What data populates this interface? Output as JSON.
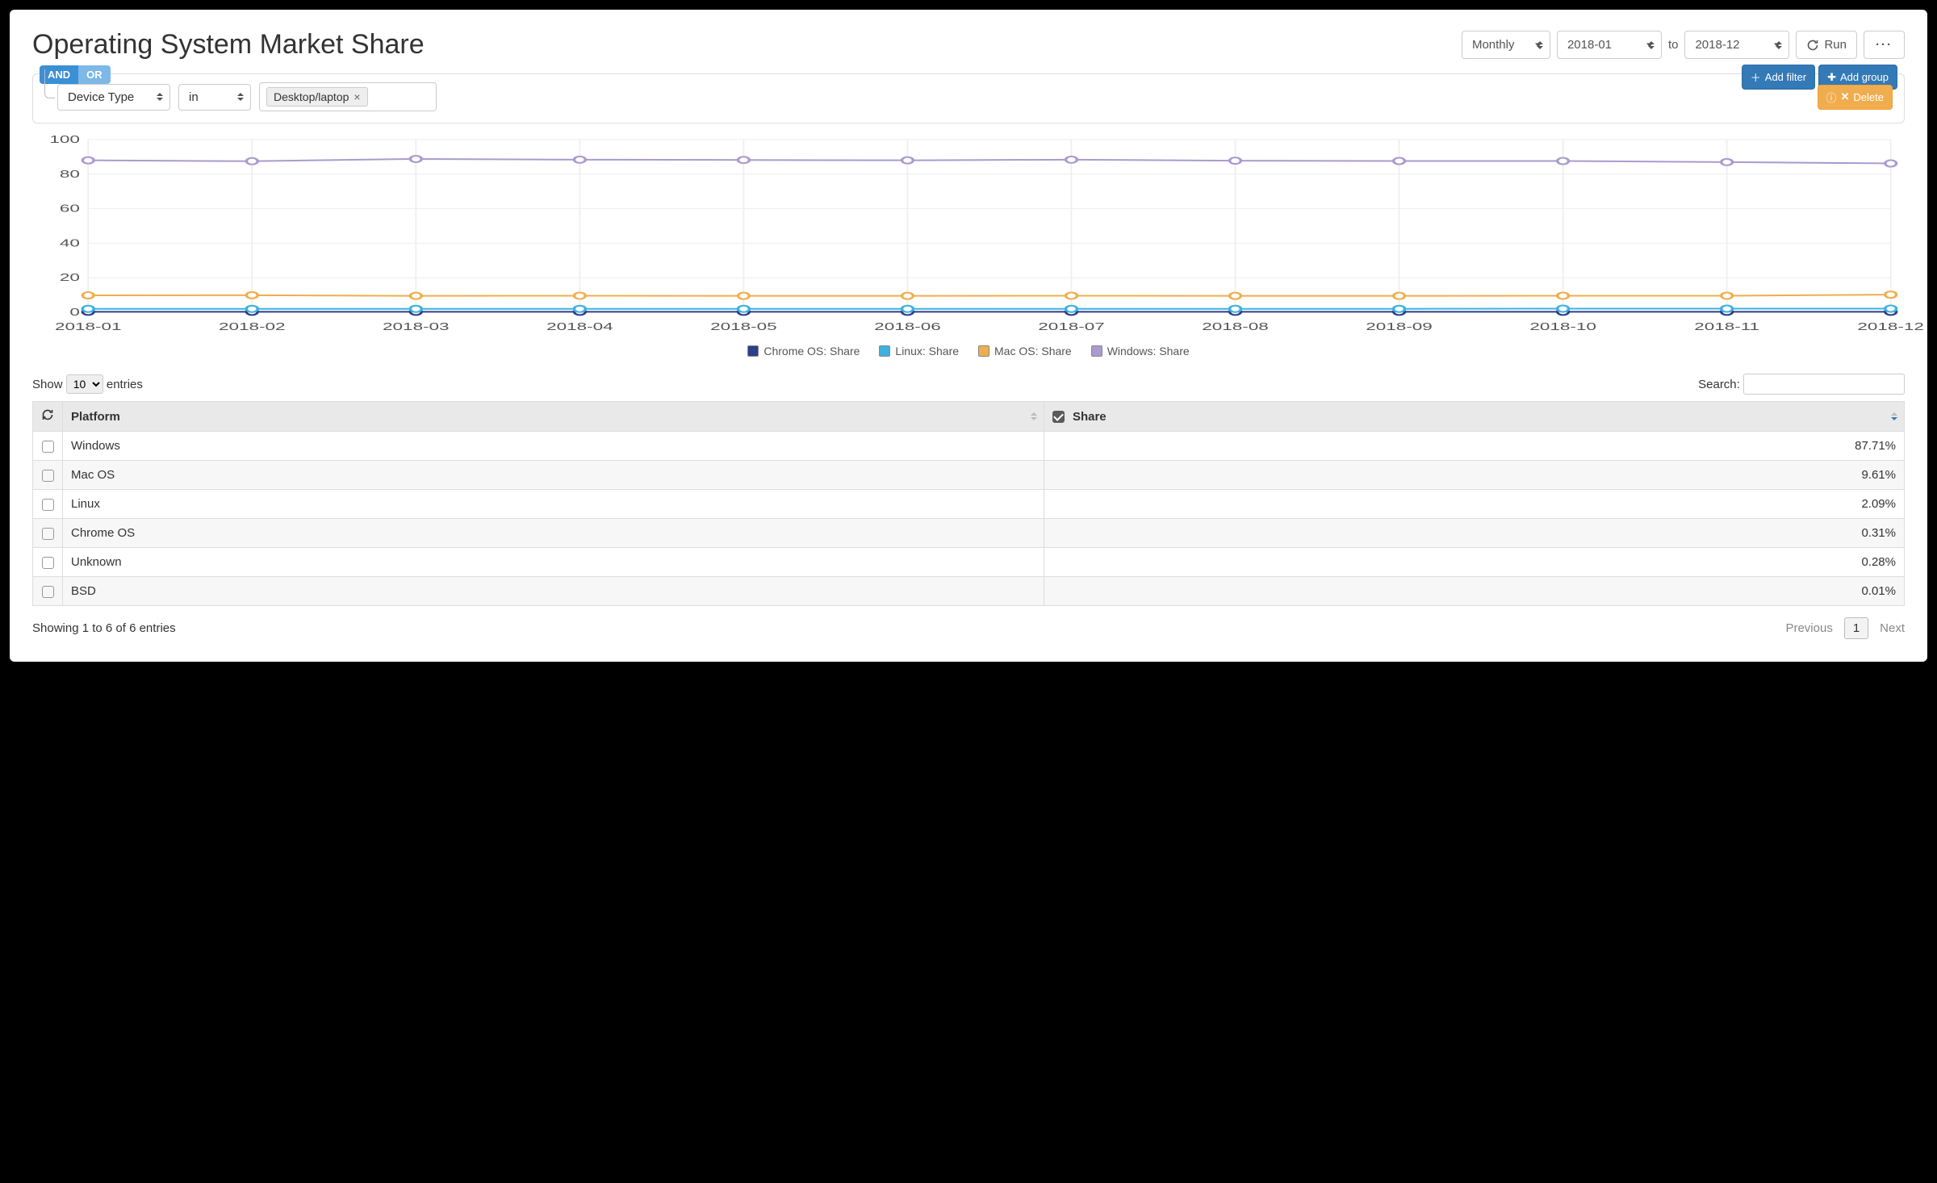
{
  "title": "Operating System Market Share",
  "period": {
    "granularity": "Monthly",
    "from": "2018-01",
    "to_label": "to",
    "to": "2018-12",
    "run_label": "Run"
  },
  "filter": {
    "and_label": "AND",
    "or_label": "OR",
    "add_filter_label": "Add filter",
    "add_group_label": "Add group",
    "field": "Device Type",
    "operator": "in",
    "tag_value": "Desktop/laptop",
    "delete_label": "Delete"
  },
  "chart": {
    "type": "line",
    "x_labels": [
      "2018-01",
      "2018-02",
      "2018-03",
      "2018-04",
      "2018-05",
      "2018-06",
      "2018-07",
      "2018-08",
      "2018-09",
      "2018-10",
      "2018-11",
      "2018-12"
    ],
    "ylim": [
      0,
      100
    ],
    "ytick_step": 20,
    "grid_color": "#eeeeee",
    "background_color": "#ffffff",
    "marker_radius": 4,
    "line_width": 2,
    "label_fontsize": 13,
    "series": [
      {
        "name": "Chrome OS: Share",
        "color": "#2d3e8b",
        "values": [
          0.3,
          0.3,
          0.3,
          0.3,
          0.3,
          0.3,
          0.3,
          0.3,
          0.3,
          0.3,
          0.3,
          0.3
        ]
      },
      {
        "name": "Linux: Share",
        "color": "#3eb1e0",
        "values": [
          2.0,
          2.0,
          2.0,
          2.0,
          2.0,
          2.0,
          2.0,
          2.0,
          2.0,
          2.1,
          2.1,
          2.1
        ]
      },
      {
        "name": "Mac OS: Share",
        "color": "#f0ad4e",
        "values": [
          9.8,
          9.9,
          9.5,
          9.6,
          9.5,
          9.5,
          9.6,
          9.5,
          9.5,
          9.6,
          9.6,
          10.2
        ]
      },
      {
        "name": "Windows: Share",
        "color": "#a99bcf",
        "values": [
          88.0,
          87.5,
          88.8,
          88.4,
          88.2,
          88.0,
          88.4,
          87.8,
          87.6,
          87.6,
          87.0,
          86.2
        ]
      }
    ]
  },
  "table": {
    "show_prefix": "Show",
    "show_value": "10",
    "show_suffix": "entries",
    "search_label": "Search:",
    "columns": {
      "platform": "Platform",
      "share": "Share"
    },
    "share_checked": true,
    "rows": [
      {
        "platform": "Windows",
        "share": "87.71%"
      },
      {
        "platform": "Mac OS",
        "share": "9.61%"
      },
      {
        "platform": "Linux",
        "share": "2.09%"
      },
      {
        "platform": "Chrome OS",
        "share": "0.31%"
      },
      {
        "platform": "Unknown",
        "share": "0.28%"
      },
      {
        "platform": "BSD",
        "share": "0.01%"
      }
    ],
    "info": "Showing 1 to 6 of 6 entries",
    "prev_label": "Previous",
    "page": "1",
    "next_label": "Next"
  }
}
